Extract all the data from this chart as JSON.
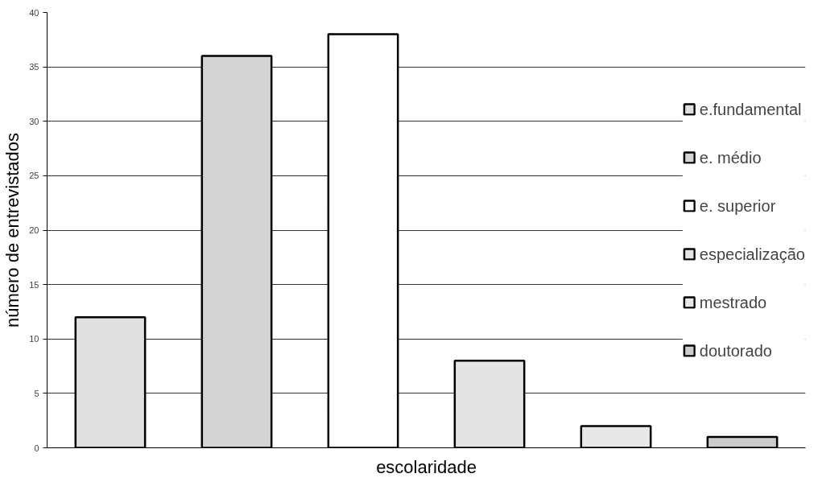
{
  "chart_data": {
    "type": "bar",
    "xlabel": "escolaridade",
    "ylabel": "número de entrevistados",
    "categories": [
      null,
      null,
      null,
      null,
      null,
      null
    ],
    "series": [
      {
        "name": "e.fundamental",
        "color": "#e0e0e0",
        "values": [
          12,
          null,
          null,
          null,
          null,
          null
        ]
      },
      {
        "name": "e. médio",
        "color": "#d4d4d4",
        "values": [
          null,
          36,
          null,
          null,
          null,
          null
        ]
      },
      {
        "name": "e. superior",
        "color": "#ffffff",
        "values": [
          null,
          null,
          38,
          null,
          null,
          null
        ]
      },
      {
        "name": "especialização",
        "color": "#e4e4e4",
        "values": [
          null,
          null,
          null,
          8,
          null,
          null
        ]
      },
      {
        "name": "mestrado",
        "color": "#e8e8e8",
        "values": [
          null,
          null,
          null,
          null,
          2,
          null
        ]
      },
      {
        "name": "doutorado",
        "color": "#cccccc",
        "values": [
          null,
          null,
          null,
          null,
          null,
          1
        ]
      }
    ],
    "ylim": [
      0,
      40
    ],
    "yticks": [
      0,
      5,
      10,
      15,
      20,
      25,
      30,
      35,
      40
    ],
    "grid": "y",
    "legend": "right",
    "tick_labels": "y"
  }
}
